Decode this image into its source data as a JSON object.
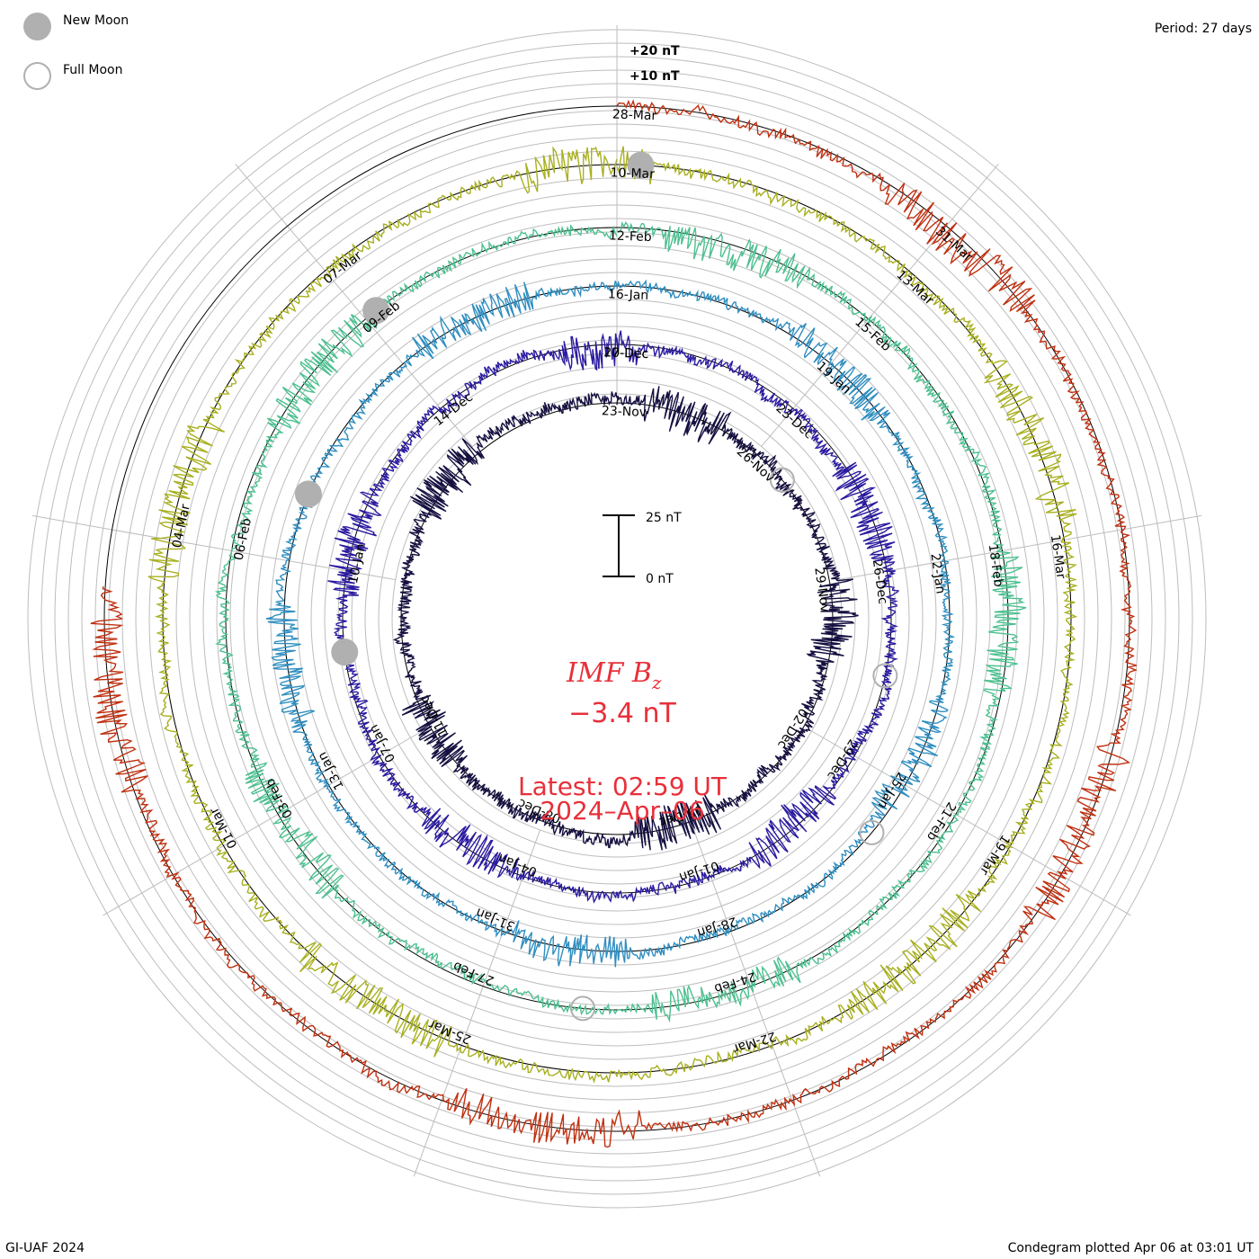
{
  "legend": {
    "new_moon": "New Moon",
    "full_moon": "Full Moon"
  },
  "period_label": "Period: 27 days",
  "footer_left": "GI-UAF 2024",
  "footer_right": "Condegram plotted Apr 06 at 03:01 UT",
  "scale_top": "+20 nT",
  "scale_mid": "+10 nT",
  "scale_bar_top": "25 nT",
  "scale_bar_bottom": "0 nT",
  "center": {
    "title": "IMF B",
    "title_sub": "z",
    "value": "−3.4 nT",
    "latest_line1": "Latest: 02:59 UT",
    "latest_line2": "2024–Apr–06"
  },
  "colors": {
    "grid": "#bdbdbd",
    "baseline": "#000000",
    "text_red": "#e8303a",
    "moon": "#b0b0b0"
  },
  "chart_data": {
    "type": "line",
    "title": "IMF Bz",
    "unit": "nT",
    "period_days": 27,
    "rotations": [
      {
        "color": "#151040",
        "labels": [
          "23-Nov",
          "26-Nov",
          "29-Nov",
          "02-Dec",
          "05-Dec",
          "08-Dec",
          "11-Dec"
        ]
      },
      {
        "color": "#2a1aa0",
        "labels": [
          "20-Dec",
          "23-Dec",
          "26-Dec",
          "29-Dec",
          "01-Jan",
          "04-Jan",
          "07-Jan",
          "10-Jan",
          "14-Dec",
          "17-Dec"
        ]
      },
      {
        "color": "#2f8ec0",
        "labels": [
          "16-Jan",
          "19-Jan",
          "22-Jan",
          "25-Jan",
          "28-Jan",
          "31-Jan",
          "13-Jan"
        ]
      },
      {
        "color": "#4cc090",
        "labels": [
          "12-Feb",
          "15-Feb",
          "18-Feb",
          "21-Feb",
          "24-Feb",
          "27-Feb",
          "03-Feb",
          "06-Feb",
          "09-Feb"
        ]
      },
      {
        "color": "#a8b020",
        "labels": [
          "10-Mar",
          "13-Mar",
          "16-Mar",
          "19-Mar",
          "22-Mar",
          "25-Mar",
          "01-Mar",
          "04-Mar",
          "07-Mar"
        ]
      },
      {
        "color": "#c03010",
        "labels": [
          "28-Mar",
          "31-Mar"
        ]
      }
    ],
    "latest_value": -3.4
  }
}
